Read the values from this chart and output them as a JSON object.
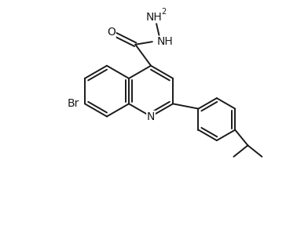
{
  "bg_color": "#ffffff",
  "line_color": "#1a1a1a",
  "line_width": 1.4,
  "font_size": 10,
  "font_size_sub": 7,
  "figsize": [
    3.64,
    2.92
  ],
  "dpi": 100,
  "xlim": [
    0,
    10
  ],
  "ylim": [
    0,
    8.04
  ]
}
